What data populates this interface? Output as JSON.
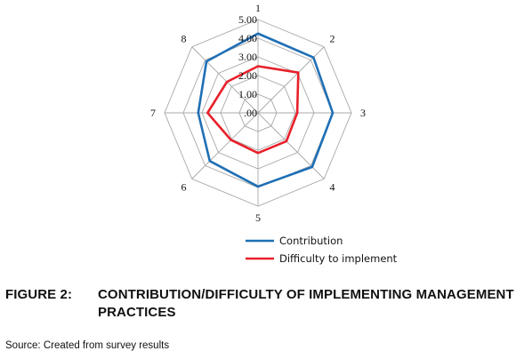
{
  "chart_data": {
    "type": "radar",
    "axes": [
      "1",
      "2",
      "3",
      "4",
      "5",
      "6",
      "7",
      "8"
    ],
    "ticks": [
      ".00",
      "1.00",
      "2.00",
      "3.00",
      "4.00",
      "5.00"
    ],
    "rmin": 0,
    "rmax": 5,
    "series": [
      {
        "name": "Contribution",
        "values": [
          4.25,
          4.2,
          4.0,
          4.1,
          3.95,
          3.65,
          3.2,
          3.9
        ],
        "color": "#1f6fb5"
      },
      {
        "name": "Difficulty to implement",
        "values": [
          2.5,
          3.05,
          2.1,
          2.15,
          2.15,
          2.05,
          2.7,
          2.35
        ],
        "color": "#e8202a"
      }
    ],
    "grid": true,
    "legend": "bottom"
  },
  "figure": {
    "number": "FIGURE 2:",
    "title": "CONTRIBUTION/DIFFICULTY OF IMPLEMENTING MANAGEMENT PRACTICES"
  },
  "source": "Source: Created from survey results"
}
